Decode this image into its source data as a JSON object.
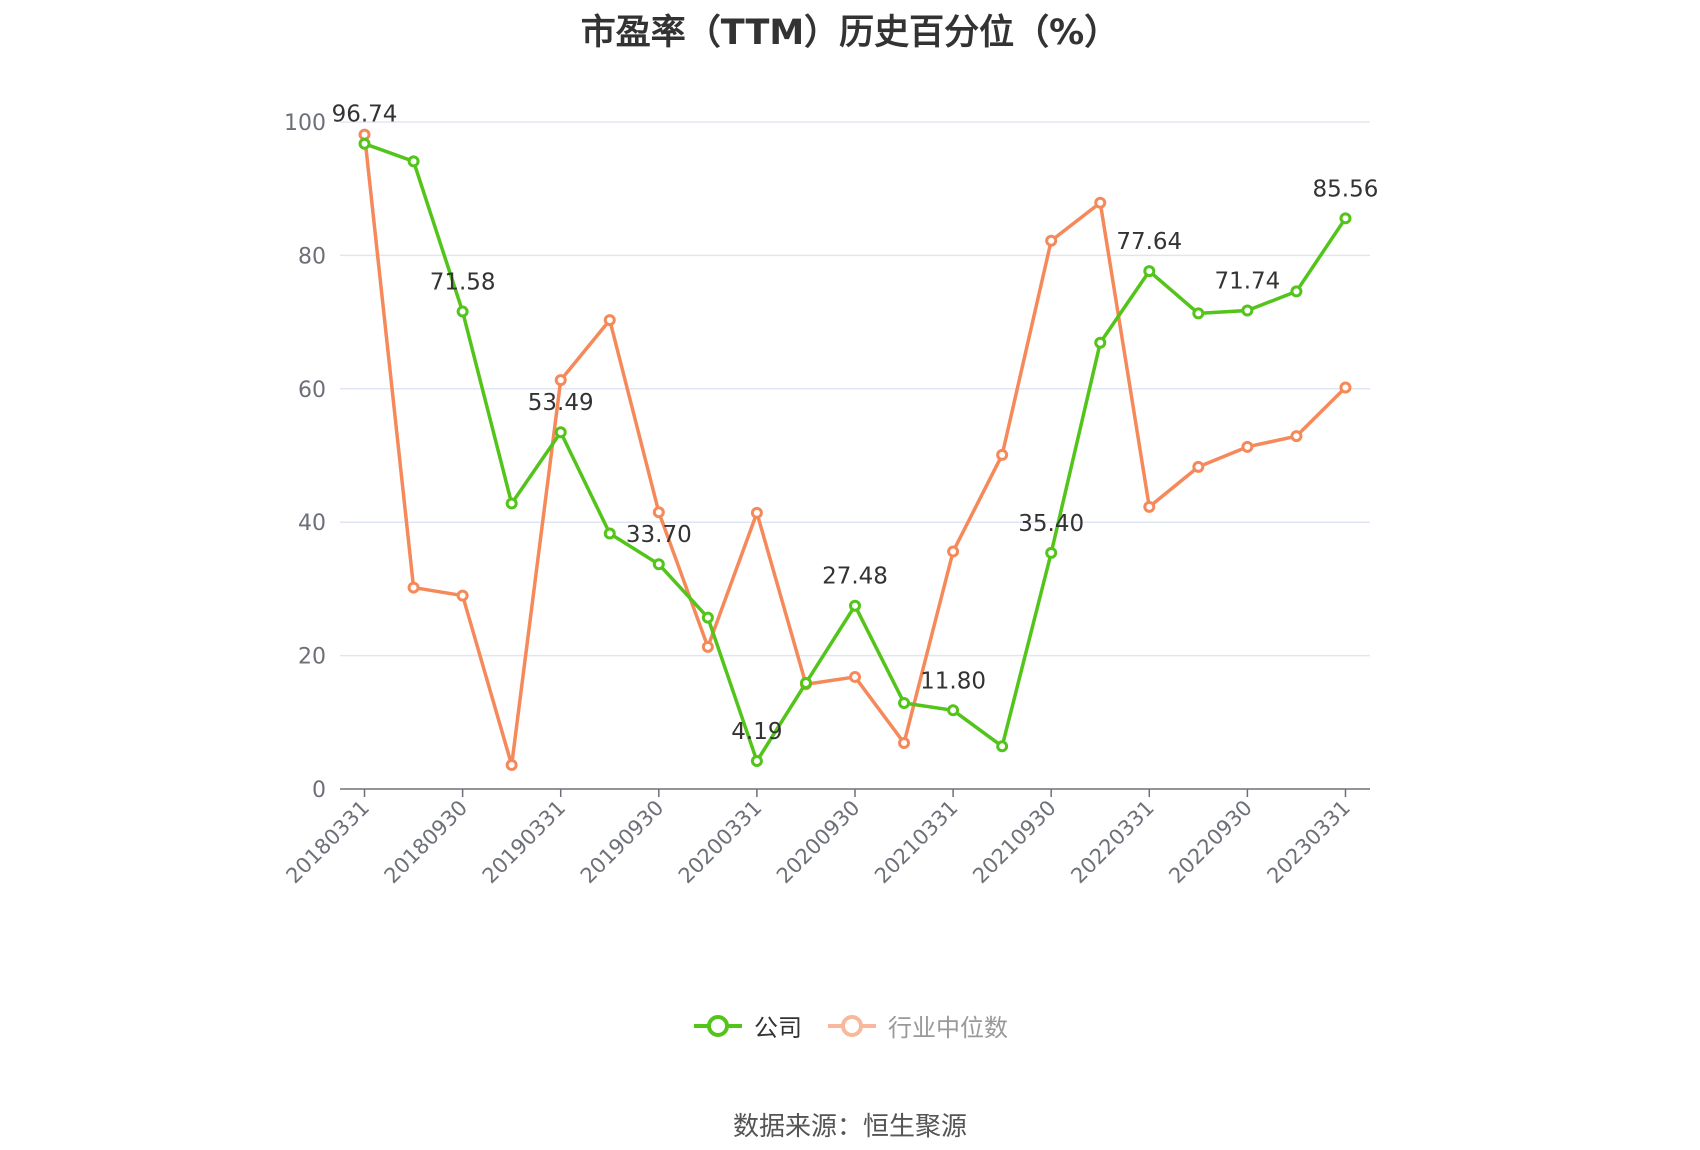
{
  "chart_data": {
    "type": "line",
    "title": "市盈率（TTM）历史百分位（%）",
    "xlabel": "",
    "ylabel": "",
    "ylim": [
      0,
      100
    ],
    "yticks": [
      0,
      20,
      40,
      60,
      80,
      100
    ],
    "grid": true,
    "legend_position": "bottom",
    "x": [
      "20180331",
      "20180630",
      "20180930",
      "20181231",
      "20190331",
      "20190630",
      "20190930",
      "20191231",
      "20200331",
      "20200630",
      "20200930",
      "20201231",
      "20210331",
      "20210630",
      "20210930",
      "20211231",
      "20220331",
      "20220630",
      "20220930",
      "20221231",
      "20230331"
    ],
    "x_tick_labels": [
      "20180331",
      "20180930",
      "20190331",
      "20190930",
      "20200331",
      "20200930",
      "20210331",
      "20210930",
      "20220331",
      "20220930",
      "20230331"
    ],
    "series": [
      {
        "name": "公司",
        "color": "#52c41a",
        "values": [
          96.74,
          94.1,
          71.58,
          42.8,
          53.49,
          38.3,
          33.7,
          25.7,
          4.19,
          15.9,
          27.48,
          12.9,
          11.8,
          6.4,
          35.4,
          66.9,
          77.64,
          71.3,
          71.74,
          74.6,
          85.56
        ],
        "labels": [
          "96.74",
          "",
          "71.58",
          "",
          "53.49",
          "",
          "33.70",
          "",
          "4.19",
          "",
          "27.48",
          "",
          "11.80",
          "",
          "35.40",
          "",
          "77.64",
          "",
          "71.74",
          "",
          "85.56"
        ]
      },
      {
        "name": "行业中位数",
        "color": "#f5895a",
        "values": [
          98.1,
          30.2,
          29.0,
          3.6,
          61.3,
          70.3,
          41.5,
          21.3,
          41.4,
          15.7,
          16.8,
          6.9,
          35.6,
          50.1,
          82.2,
          87.9,
          42.3,
          48.3,
          51.3,
          52.9,
          60.2
        ]
      }
    ]
  },
  "legend": {
    "items": [
      {
        "label": "公司",
        "color": "#52c41a",
        "text_color": "#333333"
      },
      {
        "label": "行业中位数",
        "color": "#f5895a",
        "text_color": "#999999"
      }
    ]
  },
  "source_text": "数据来源：恒生聚源"
}
